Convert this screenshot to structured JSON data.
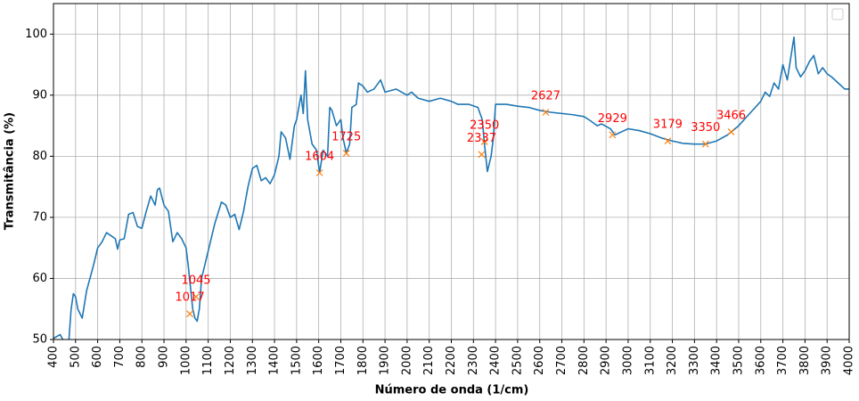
{
  "chart_data": {
    "type": "line",
    "xlabel": "Número de onda (1/cm)",
    "ylabel": "Transmitância (%)",
    "xlim": [
      400,
      4000
    ],
    "ylim": [
      50,
      105
    ],
    "xticks": [
      400,
      500,
      600,
      700,
      800,
      900,
      1000,
      1100,
      1200,
      1300,
      1400,
      1500,
      1600,
      1700,
      1800,
      1900,
      2000,
      2100,
      2200,
      2300,
      2400,
      2500,
      2600,
      2700,
      2800,
      2900,
      3000,
      3100,
      3200,
      3300,
      3400,
      3500,
      3600,
      3700,
      3800,
      3900,
      4000
    ],
    "yticks": [
      50,
      60,
      70,
      80,
      90,
      100
    ],
    "grid": true,
    "series": [
      {
        "color": "#1f77b4",
        "x": [
          400,
          430,
          450,
          470,
          480,
          490,
          500,
          510,
          530,
          550,
          580,
          600,
          620,
          640,
          660,
          680,
          690,
          700,
          720,
          740,
          760,
          780,
          800,
          820,
          840,
          860,
          870,
          880,
          900,
          920,
          940,
          960,
          980,
          1000,
          1010,
          1030,
          1040,
          1050,
          1060,
          1070,
          1090,
          1110,
          1130,
          1160,
          1180,
          1200,
          1220,
          1240,
          1260,
          1280,
          1300,
          1320,
          1340,
          1360,
          1380,
          1400,
          1420,
          1430,
          1450,
          1470,
          1490,
          1500,
          1510,
          1520,
          1530,
          1540,
          1550,
          1570,
          1590,
          1604,
          1620,
          1640,
          1650,
          1660,
          1680,
          1700,
          1710,
          1725,
          1740,
          1750,
          1770,
          1780,
          1800,
          1820,
          1850,
          1880,
          1900,
          1950,
          2000,
          2020,
          2050,
          2100,
          2150,
          2200,
          2230,
          2280,
          2320,
          2340,
          2350,
          2363,
          2380,
          2390,
          2400,
          2450,
          2500,
          2550,
          2600,
          2650,
          2700,
          2750,
          2800,
          2830,
          2860,
          2880,
          2920,
          2940,
          2970,
          3000,
          3050,
          3100,
          3150,
          3200,
          3250,
          3300,
          3350,
          3400,
          3450,
          3500,
          3550,
          3600,
          3620,
          3640,
          3660,
          3680,
          3700,
          3720,
          3750,
          3760,
          3780,
          3800,
          3820,
          3840,
          3860,
          3880,
          3900,
          3920,
          3950,
          3980,
          4000
        ],
        "values": [
          50.2,
          50.8,
          49.5,
          50,
          55,
          57.5,
          57,
          55,
          53.5,
          58,
          62,
          65,
          66,
          67.5,
          67,
          66.5,
          64.8,
          66.3,
          66.5,
          70.5,
          70.8,
          68.5,
          68.2,
          71,
          73.5,
          72,
          74.5,
          74.8,
          72,
          71,
          66,
          67.5,
          66.5,
          65,
          62,
          55,
          53.5,
          53,
          55,
          60,
          63,
          66,
          69,
          72.5,
          72,
          70,
          70.5,
          68,
          71,
          75,
          78,
          78.5,
          76,
          76.5,
          75.5,
          77,
          80,
          84,
          83,
          79.5,
          85,
          86,
          88,
          90,
          87,
          94,
          86,
          82,
          81,
          77.3,
          81,
          80,
          88,
          87.5,
          85,
          86,
          83,
          80.5,
          82,
          88,
          88.5,
          92,
          91.5,
          90.5,
          91,
          92.5,
          90.5,
          91,
          90,
          90.5,
          89.5,
          89,
          89.5,
          89,
          88.5,
          88.5,
          88,
          86,
          82,
          77.5,
          80,
          83,
          88.5,
          88.5,
          88.2,
          88,
          87.5,
          87.2,
          87,
          86.8,
          86.5,
          85.8,
          85,
          85.3,
          84.5,
          83.5,
          84,
          84.5,
          84.2,
          83.7,
          83,
          82.5,
          82.1,
          82,
          82,
          82.5,
          83.5,
          85,
          87,
          89,
          90.5,
          89.8,
          92,
          91,
          95,
          92.5,
          99.5,
          94.5,
          93,
          94,
          95.5,
          96.5,
          93.5,
          94.5,
          93.5,
          93,
          92,
          91,
          91
        ]
      }
    ],
    "peaks": {
      "color": "#ff7f0e",
      "label_color": "#ff0000",
      "x": [
        1017,
        1045,
        1604,
        1725,
        2337,
        2350,
        2627,
        2929,
        3179,
        3350,
        3466
      ],
      "values": [
        54.2,
        57,
        77.3,
        80.5,
        80.3,
        82.4,
        87.2,
        83.5,
        82.5,
        82,
        84
      ]
    }
  }
}
